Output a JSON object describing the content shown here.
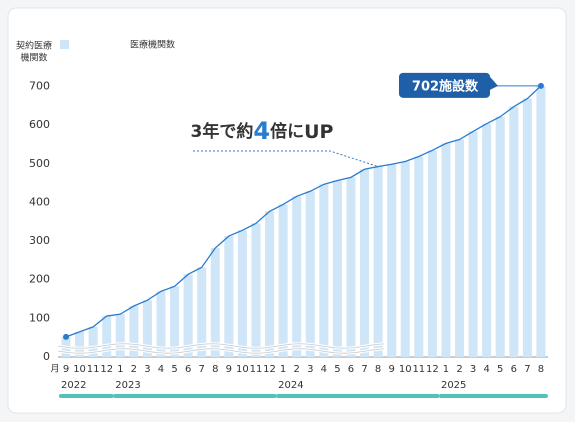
{
  "chart_data": {
    "type": "bar-line",
    "y_label": [
      "契約医療",
      "機関数"
    ],
    "month_label": "月",
    "categories": [
      "9",
      "10",
      "11",
      "12",
      "1",
      "2",
      "3",
      "4",
      "5",
      "6",
      "7",
      "8",
      "9",
      "10",
      "11",
      "12",
      "1",
      "2",
      "3",
      "4",
      "5",
      "6",
      "7",
      "8",
      "9",
      "10",
      "11",
      "12",
      "1",
      "2",
      "3",
      "4",
      "5",
      "6",
      "7",
      "8"
    ],
    "years": [
      "2022",
      "2023",
      "2024",
      "2025"
    ],
    "series": [
      {
        "name": "医療機関数",
        "color": "#cfe5f8",
        "line_color": "#2a7ccf",
        "values": [
          52,
          65,
          78,
          106,
          111,
          132,
          147,
          170,
          183,
          214,
          232,
          282,
          313,
          328,
          346,
          377,
          395,
          416,
          429,
          447,
          457,
          465,
          486,
          493,
          499,
          506,
          519,
          535,
          553,
          563,
          584,
          604,
          622,
          648,
          669,
          702
        ]
      }
    ],
    "ylim": [
      0,
      730
    ],
    "yticks": [
      0,
      100,
      200,
      300,
      400,
      500,
      600,
      700
    ],
    "end_label": "702施設数",
    "callout": [
      "3年で約",
      "4",
      "倍に",
      "UP"
    ]
  }
}
